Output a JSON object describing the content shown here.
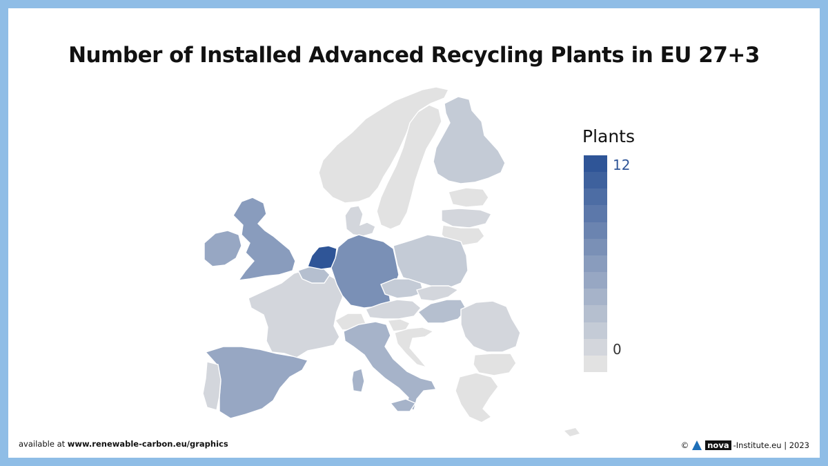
{
  "title": "Number of Installed Advanced Recycling Plants in EU 27+3",
  "legend": {
    "title": "Plants",
    "max_label": "12",
    "min_label": "0",
    "min": 0,
    "max": 12,
    "color_min": "#e2e2e2",
    "color_max": "#2f5597"
  },
  "footer": {
    "left_prefix": "available at ",
    "left_url": "www.renewable-carbon.eu/graphics",
    "copyright": "©",
    "brand": "nova",
    "brand_suffix": "-Institute.eu | 2023"
  },
  "countries": {
    "netherlands": 12,
    "germany": 7,
    "united_kingdom": 6,
    "spain": 5,
    "italy": 4,
    "hungary": 3,
    "belgium": 3,
    "poland": 2,
    "finland": 2,
    "czechia": 2,
    "ireland": 5,
    "france": 1,
    "romania": 1,
    "denmark": 1,
    "austria": 1,
    "slovakia": 1,
    "latvia": 1,
    "portugal": 1,
    "switzerland": 0,
    "norway": 0,
    "sweden": 0,
    "estonia": 0,
    "lithuania": 0,
    "bulgaria": 0,
    "greece": 0,
    "slovenia": 0,
    "croatia": 0
  }
}
